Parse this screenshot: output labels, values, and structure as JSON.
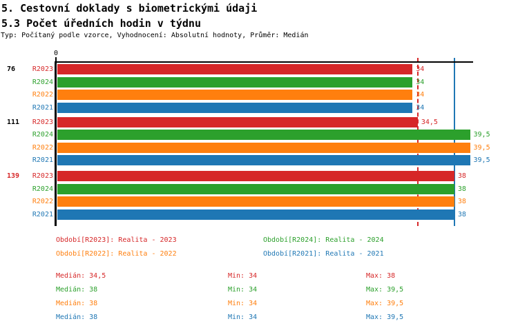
{
  "header": {
    "title_line1": "5. Cestovní doklady s biometrickými údaji",
    "title_line2": "5.3 Počet úředních hodin v týdnu",
    "meta_line": "Typ: Počítaný podle vzorce, Vyhodnocení: Absolutní hodnoty, Průměr: Medián"
  },
  "colors": {
    "r2023_red": "#d62728",
    "r2024_green": "#2ca02c",
    "r2022_orange": "#ff7f0e",
    "r2021_blue": "#1f77b4",
    "axis_black": "#000000",
    "highlight_group_red": "#d62728"
  },
  "chart_data": {
    "type": "bar",
    "orientation": "horizontal",
    "x_origin_label": "0",
    "xlim": [
      0,
      39.8
    ],
    "grid": false,
    "groups": [
      {
        "label": "76",
        "label_color": "#000000"
      },
      {
        "label": "111",
        "label_color": "#000000"
      },
      {
        "label": "139",
        "label_color": "#d62728"
      }
    ],
    "series": [
      {
        "name": "R2023",
        "color": "#d62728",
        "values": [
          34,
          34.5,
          38
        ],
        "value_labels": [
          "34",
          "34,5",
          "38"
        ]
      },
      {
        "name": "R2024",
        "color": "#2ca02c",
        "values": [
          34,
          39.5,
          38
        ],
        "value_labels": [
          "34",
          "39,5",
          "38"
        ]
      },
      {
        "name": "R2022",
        "color": "#ff7f0e",
        "values": [
          34,
          39.5,
          38
        ],
        "value_labels": [
          "34",
          "39,5",
          "38"
        ]
      },
      {
        "name": "R2021",
        "color": "#1f77b4",
        "values": [
          34,
          39.5,
          38
        ],
        "value_labels": [
          "34",
          "39,5",
          "38"
        ]
      }
    ],
    "reference_lines": [
      {
        "value": 34.5,
        "color": "#d62728",
        "style": "dashed"
      },
      {
        "value": 38.0,
        "color": "#1f77b4",
        "style": "solid"
      }
    ],
    "legend_position": "bottom"
  },
  "legend": [
    {
      "text": "Období[R2023]: Realita - 2023",
      "color": "#d62728"
    },
    {
      "text": "Období[R2024]: Realita - 2024",
      "color": "#2ca02c"
    },
    {
      "text": "Období[R2022]: Realita - 2022",
      "color": "#ff7f0e"
    },
    {
      "text": "Období[R2021]: Realita - 2021",
      "color": "#1f77b4"
    }
  ],
  "stats": [
    {
      "median": "Medián: 34,5",
      "min": "Min: 34",
      "max": "Max: 38",
      "color": "#d62728"
    },
    {
      "median": "Medián: 38",
      "min": "Min: 34",
      "max": "Max: 39,5",
      "color": "#2ca02c"
    },
    {
      "median": "Medián: 38",
      "min": "Min: 34",
      "max": "Max: 39,5",
      "color": "#ff7f0e"
    },
    {
      "median": "Medián: 38",
      "min": "Min: 34",
      "max": "Max: 39,5",
      "color": "#1f77b4"
    }
  ]
}
